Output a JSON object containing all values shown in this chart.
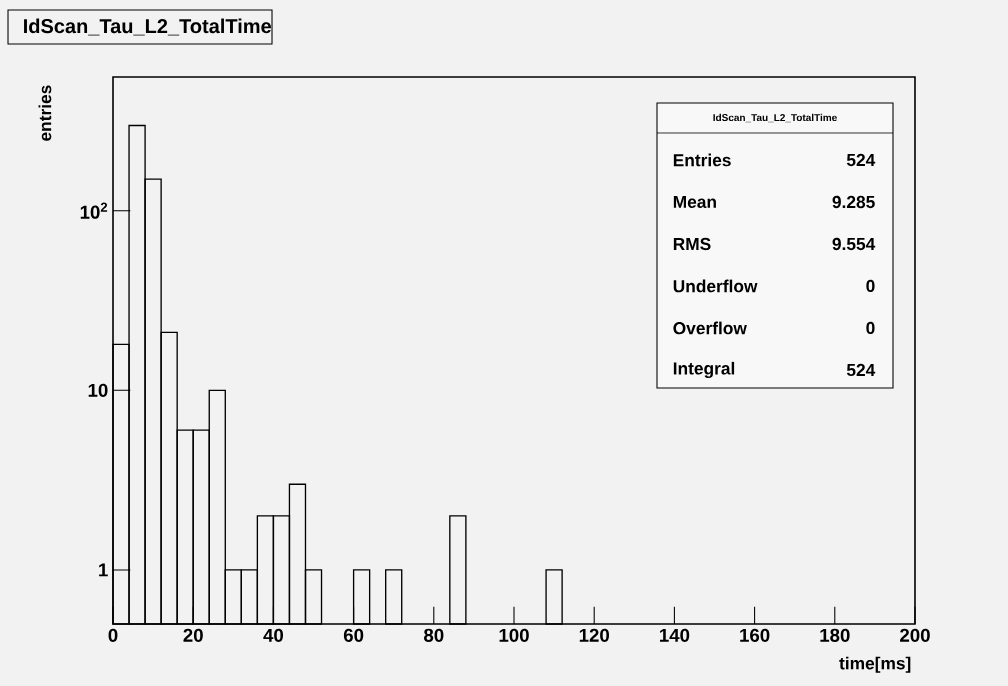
{
  "chart_data": {
    "type": "histogram",
    "title": "IdScan_Tau_L2_TotalTime",
    "xlabel": "time[ms]",
    "ylabel": "entries",
    "color": "#000000",
    "log": "y",
    "bins": [
      0,
      4,
      8,
      12,
      16,
      20,
      24,
      28,
      32,
      36,
      40,
      44,
      48,
      52,
      56,
      60,
      64,
      68,
      72,
      76,
      80,
      84,
      88,
      92,
      96,
      100,
      104,
      108,
      112,
      116,
      120,
      124,
      128,
      132,
      136,
      140,
      144,
      148,
      152,
      156,
      160,
      164,
      168,
      172,
      176,
      180,
      184,
      188,
      192,
      196,
      200
    ],
    "values": [
      18,
      298,
      150,
      21,
      6,
      6,
      10,
      1,
      1,
      2,
      2,
      3,
      1,
      null,
      null,
      1,
      null,
      1,
      null,
      null,
      null,
      2,
      null,
      null,
      null,
      null,
      null,
      1,
      null,
      null,
      null,
      null,
      null,
      null,
      null,
      null,
      null,
      null,
      null,
      null,
      null,
      null,
      null,
      null,
      null,
      null,
      null,
      null,
      null,
      null
    ],
    "xlim": [
      0,
      200
    ],
    "xticks": [
      0,
      20,
      40,
      60,
      80,
      100,
      120,
      140,
      160,
      180,
      200
    ],
    "ylim": [
      0.5,
      555
    ],
    "yticks": [
      1,
      10,
      {
        "value": 100,
        "label": "10$^{2}$"
      }
    ],
    "tick_labels": "xy",
    "annotations": [
      "IdScan_Tau_L2_TotalTime",
      "Entries",
      "524",
      "Mean",
      "9.285",
      "RMS",
      "9.554",
      "Underflow",
      "0",
      "Overflow",
      "0",
      "Integral",
      "524"
    ]
  }
}
